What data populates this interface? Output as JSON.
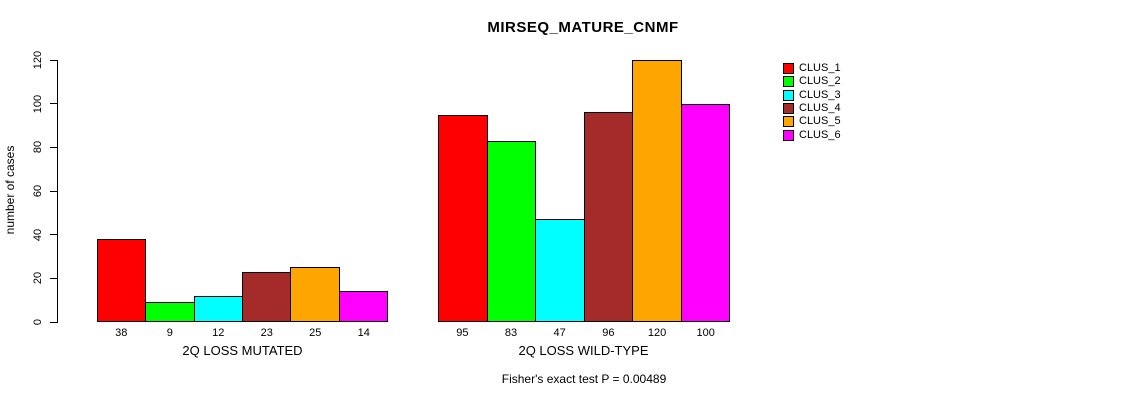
{
  "title": "MIRSEQ_MATURE_CNMF",
  "footer": "Fisher's exact test P = 0.00489",
  "chart_data": {
    "type": "bar",
    "title": "MIRSEQ_MATURE_CNMF",
    "ylabel": "number of cases",
    "xlabel": "",
    "ylim": [
      0,
      120
    ],
    "yticks": [
      0,
      20,
      40,
      60,
      80,
      100,
      120
    ],
    "grid": false,
    "legend_position": "top-right",
    "series": [
      {
        "name": "CLUS_1",
        "color": "#FF0000"
      },
      {
        "name": "CLUS_2",
        "color": "#00FF00"
      },
      {
        "name": "CLUS_3",
        "color": "#00FFFF"
      },
      {
        "name": "CLUS_4",
        "color": "#A52A2A"
      },
      {
        "name": "CLUS_5",
        "color": "#FFA500"
      },
      {
        "name": "CLUS_6",
        "color": "#FF00FF"
      }
    ],
    "groups": [
      {
        "label": "2Q LOSS MUTATED",
        "values": [
          38,
          9,
          12,
          23,
          25,
          14
        ]
      },
      {
        "label": "2Q LOSS WILD-TYPE",
        "values": [
          95,
          83,
          47,
          96,
          120,
          100
        ]
      }
    ],
    "annotation": "Fisher's exact test P = 0.00489"
  }
}
